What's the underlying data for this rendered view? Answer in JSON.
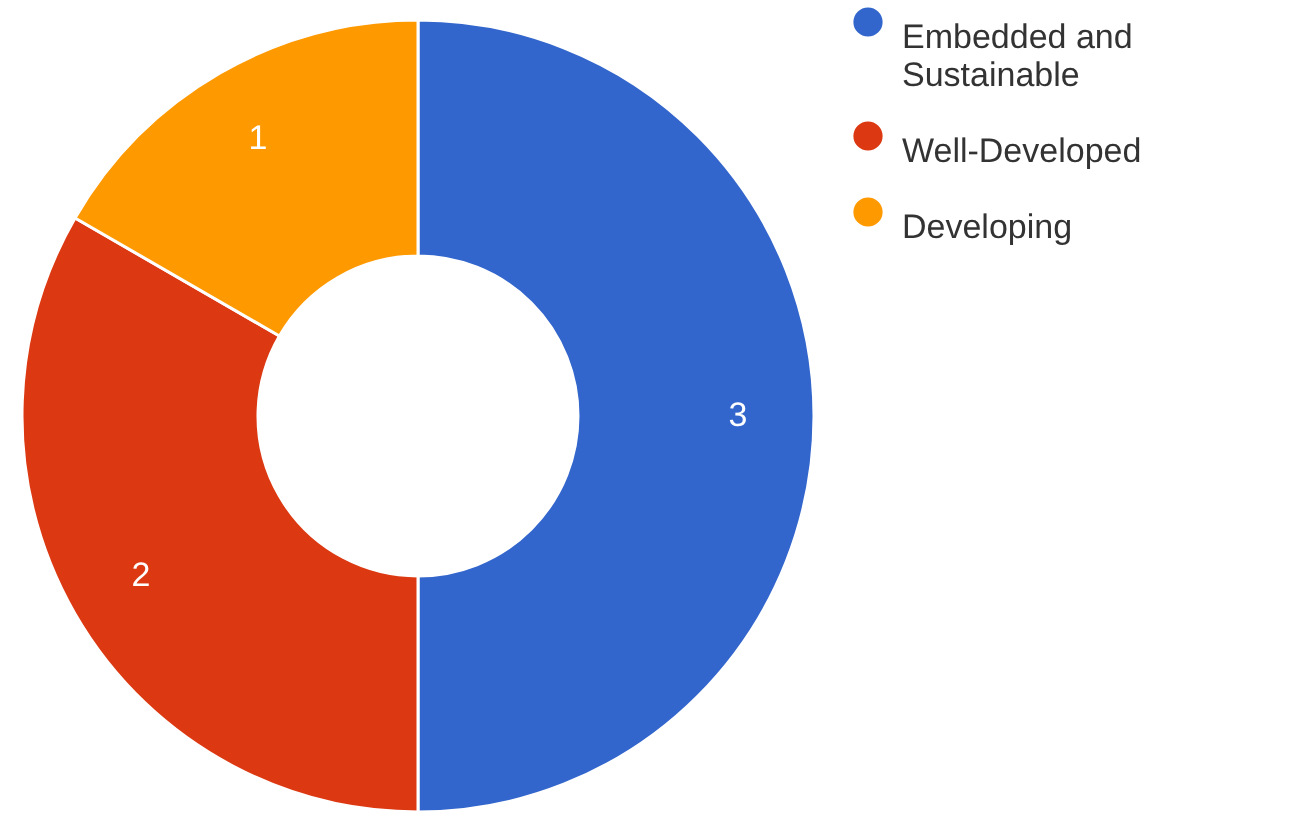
{
  "chart_data": {
    "type": "donut",
    "categories": [
      "Embedded and Sustainable",
      "Well-Developed",
      "Developing"
    ],
    "values": [
      3,
      2,
      1
    ],
    "colors": [
      "#3366cc",
      "#dc3912",
      "#ff9900"
    ],
    "data_labels": true,
    "legend": "top right"
  }
}
